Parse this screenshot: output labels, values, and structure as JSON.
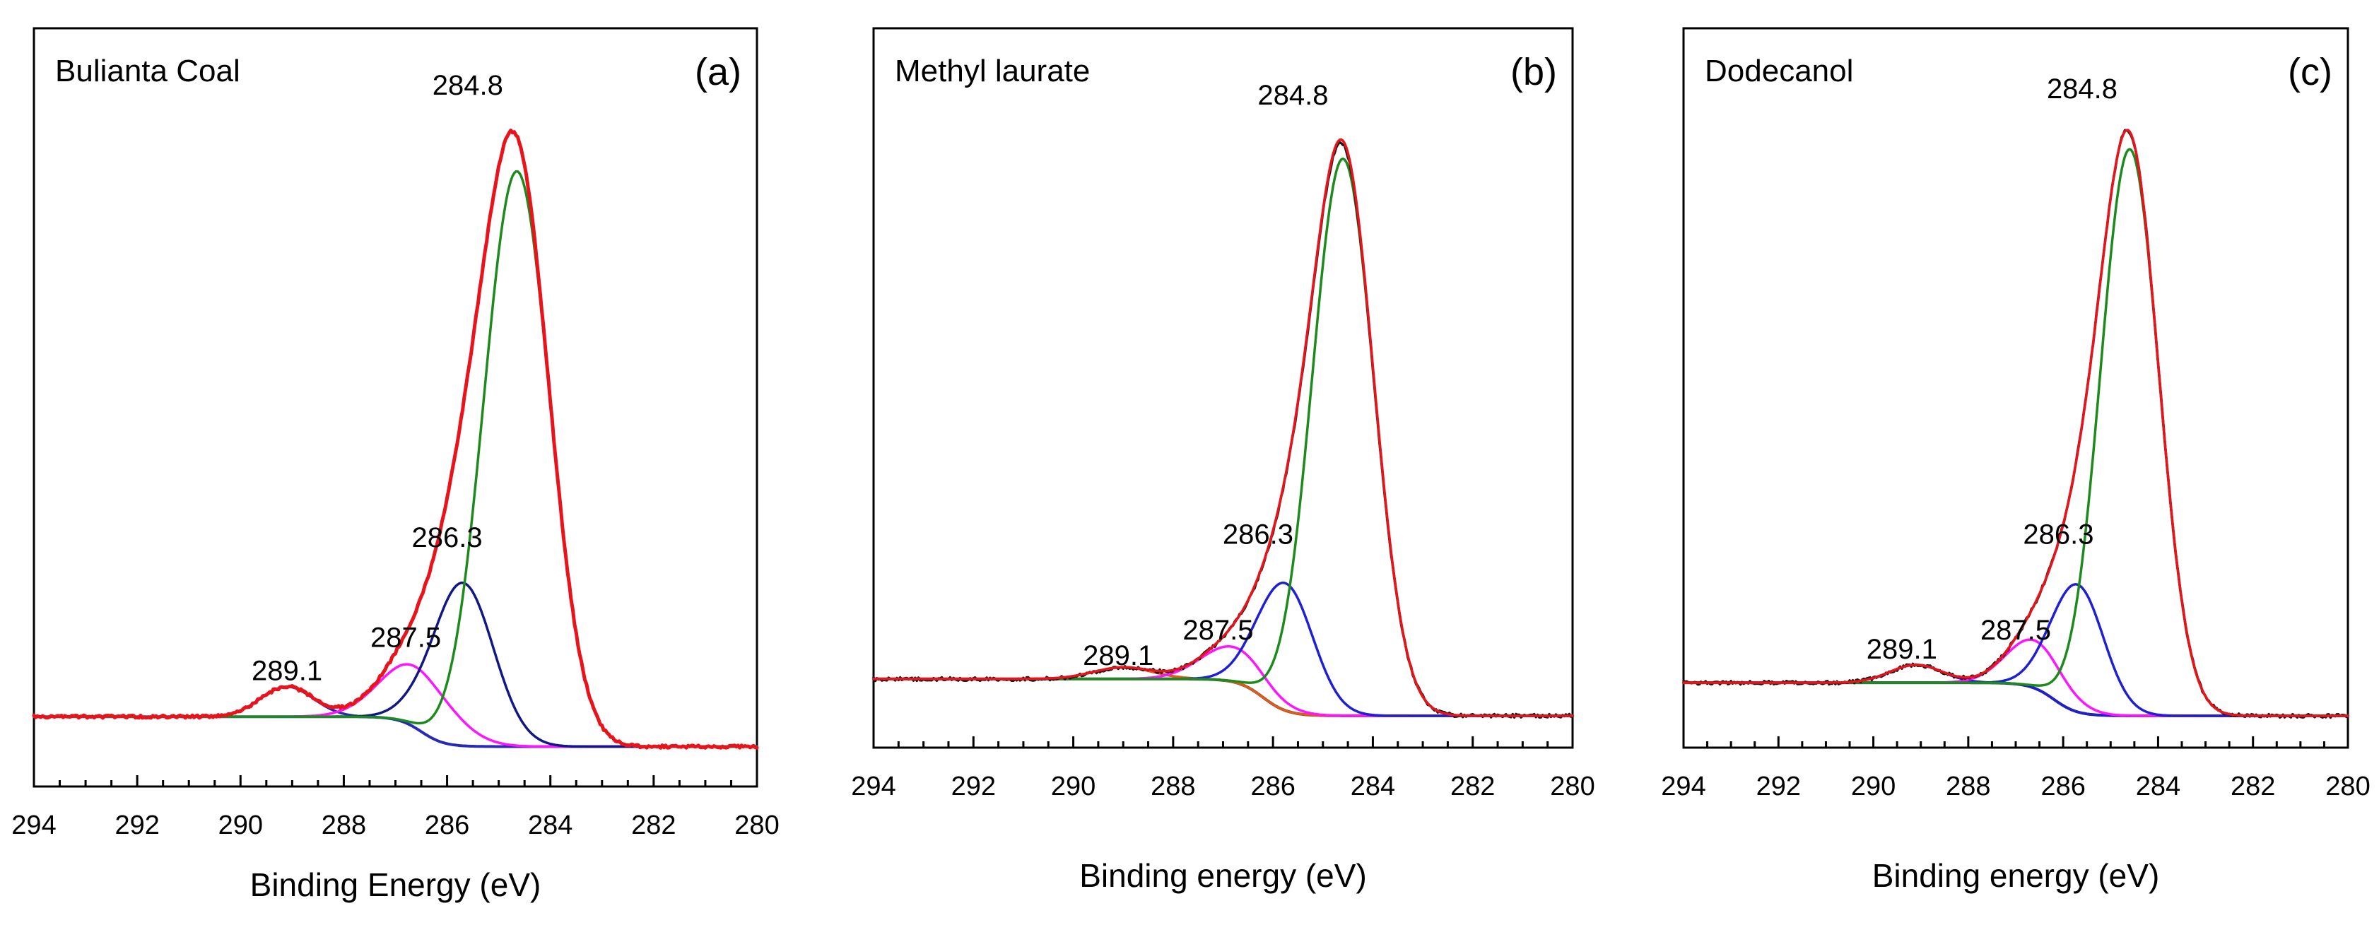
{
  "colors": {
    "envelope": "#e8131b",
    "raw": "#1a1a1a",
    "c284": "#1d8a1d",
    "c286": "#1f1fd4",
    "c286_dark": "#111884",
    "c287": "#ff14ff",
    "c289": "#2a2ab0",
    "c289_b": "#e05a1a",
    "baseline_a": "#2b3be8",
    "baseline": "#1a1a1a"
  },
  "chart_data": [
    {
      "type": "line",
      "title": "Bulianta Coal",
      "panel_label": "(a)",
      "xlabel": "Binding Energy (eV)",
      "ylabel": "",
      "xlim": [
        294,
        280
      ],
      "x_reversed": true,
      "xticks": [
        294,
        292,
        290,
        288,
        286,
        284,
        282,
        280
      ],
      "ylim": [
        -0.06,
        1.08
      ],
      "background": {
        "left": 0.045,
        "right": 0.0,
        "step_center": 286.5,
        "step_width": 0.9
      },
      "envelope_scale": 1.0,
      "peaks": [
        {
          "name": "289.1",
          "center": 289.1,
          "height": 0.045,
          "fwhm": 1.2,
          "color_key": "c289"
        },
        {
          "name": "287.5",
          "center": 286.6,
          "height": 0.092,
          "fwhm": 1.6,
          "color_key": "c287"
        },
        {
          "name": "286.3",
          "center": 285.7,
          "height": 0.245,
          "fwhm": 1.4,
          "color_key": "c286_dark"
        },
        {
          "name": "284.8",
          "center": 284.65,
          "height": 0.865,
          "fwhm": 1.5,
          "color_key": "c284"
        }
      ],
      "labels": [
        {
          "text": "284.8",
          "x": 285.6,
          "y": 0.98
        },
        {
          "text": "286.3",
          "x": 286.0,
          "y": 0.3
        },
        {
          "text": "287.5",
          "x": 286.8,
          "y": 0.15
        },
        {
          "text": "289.1",
          "x": 289.1,
          "y": 0.1
        }
      ],
      "baseline_color_key": "baseline_a",
      "raw_shown": false
    },
    {
      "type": "line",
      "title": "Methyl laurate",
      "panel_label": "(b)",
      "xlabel": "Binding energy (eV)",
      "ylabel": "",
      "xlim": [
        294,
        280
      ],
      "x_reversed": true,
      "xticks": [
        294,
        292,
        290,
        288,
        286,
        284,
        282,
        280
      ],
      "ylim": [
        -0.05,
        1.08
      ],
      "background": {
        "left": 0.058,
        "right": 0.0,
        "step_center": 286.2,
        "step_width": 1.0
      },
      "envelope_scale": 1.006,
      "peaks": [
        {
          "name": "289.1",
          "center": 289.0,
          "height": 0.018,
          "fwhm": 1.4,
          "color_key": "c289_b"
        },
        {
          "name": "287.5",
          "center": 286.8,
          "height": 0.055,
          "fwhm": 1.5,
          "color_key": "c287"
        },
        {
          "name": "286.3",
          "center": 285.75,
          "height": 0.2,
          "fwhm": 1.3,
          "color_key": "c286"
        },
        {
          "name": "284.8",
          "center": 284.6,
          "height": 0.875,
          "fwhm": 1.45,
          "color_key": "c284"
        }
      ],
      "labels": [
        {
          "text": "284.8",
          "x": 285.6,
          "y": 0.96
        },
        {
          "text": "286.3",
          "x": 286.3,
          "y": 0.27
        },
        {
          "text": "287.5",
          "x": 287.1,
          "y": 0.12
        },
        {
          "text": "289.1",
          "x": 289.1,
          "y": 0.08
        }
      ],
      "baseline_color_key": "baseline",
      "raw_shown": true
    },
    {
      "type": "line",
      "title": "Dodecanol",
      "panel_label": "(c)",
      "xlabel": "Binding energy (eV)",
      "ylabel": "",
      "xlim": [
        294,
        280
      ],
      "x_reversed": true,
      "xticks": [
        294,
        292,
        290,
        288,
        286,
        284,
        282,
        280
      ],
      "ylim": [
        -0.05,
        1.08
      ],
      "background": {
        "left": 0.052,
        "right": 0.0,
        "step_center": 286.2,
        "step_width": 1.0
      },
      "envelope_scale": 1.0,
      "peaks": [
        {
          "name": "289.1",
          "center": 289.1,
          "height": 0.028,
          "fwhm": 1.3,
          "color_key": "c286"
        },
        {
          "name": "287.5",
          "center": 286.6,
          "height": 0.075,
          "fwhm": 1.4,
          "color_key": "c287"
        },
        {
          "name": "286.3",
          "center": 285.7,
          "height": 0.2,
          "fwhm": 1.3,
          "color_key": "c286"
        },
        {
          "name": "284.8",
          "center": 284.6,
          "height": 0.89,
          "fwhm": 1.45,
          "color_key": "c284"
        }
      ],
      "labels": [
        {
          "text": "284.8",
          "x": 285.6,
          "y": 0.97
        },
        {
          "text": "286.3",
          "x": 286.1,
          "y": 0.27
        },
        {
          "text": "287.5",
          "x": 287.0,
          "y": 0.12
        },
        {
          "text": "289.1",
          "x": 289.4,
          "y": 0.09
        }
      ],
      "baseline_color_key": "baseline",
      "raw_shown": true
    }
  ]
}
